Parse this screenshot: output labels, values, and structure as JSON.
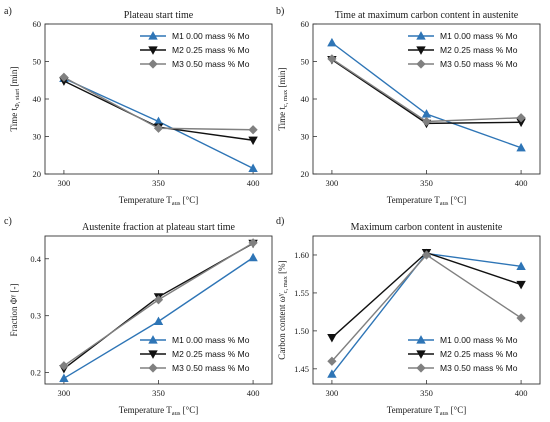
{
  "chart_data": [
    {
      "type": "line",
      "panel": "a)",
      "title": "Plateau start time",
      "xlabel": "Temperature",
      "xlabel_sub": "aus",
      "xlabel_unit": "[°C]",
      "ylabel": "Time t",
      "ylabel_sub": "Φ, start",
      "ylabel_unit": "[min]",
      "x": [
        300,
        350,
        400
      ],
      "xlim": [
        290,
        410
      ],
      "xticks": [
        "300",
        "350",
        "400"
      ],
      "ylim": [
        20,
        60
      ],
      "yticks": [
        "20",
        "30",
        "40",
        "50",
        "60"
      ],
      "legend": "top-right",
      "series": [
        {
          "name": "M1 0.00 mass % Mo",
          "values": [
            45.5,
            34.0,
            21.5
          ],
          "color": "#2e75b6",
          "marker": "triangle-up"
        },
        {
          "name": "M2 0.25 mass % Mo",
          "values": [
            44.8,
            32.5,
            29.0
          ],
          "color": "#111111",
          "marker": "triangle-down"
        },
        {
          "name": "M3 0.50 mass % Mo",
          "values": [
            45.8,
            32.2,
            31.8
          ],
          "color": "#808080",
          "marker": "diamond"
        }
      ]
    },
    {
      "type": "line",
      "panel": "b)",
      "title": "Time at maximum carbon content in austenite",
      "xlabel": "Temperature",
      "xlabel_sub": "aus",
      "xlabel_unit": "[°C]",
      "ylabel": "Time t",
      "ylabel_sub": "c, max",
      "ylabel_unit": "[min]",
      "x": [
        300,
        350,
        400
      ],
      "xlim": [
        290,
        410
      ],
      "xticks": [
        "300",
        "350",
        "400"
      ],
      "ylim": [
        20,
        60
      ],
      "yticks": [
        "20",
        "30",
        "40",
        "50",
        "60"
      ],
      "legend": "top-right",
      "series": [
        {
          "name": "M1 0.00 mass % Mo",
          "values": [
            55.0,
            36.0,
            27.0
          ],
          "color": "#2e75b6",
          "marker": "triangle-up"
        },
        {
          "name": "M2 0.25 mass % Mo",
          "values": [
            50.5,
            33.5,
            33.8
          ],
          "color": "#111111",
          "marker": "triangle-down"
        },
        {
          "name": "M3 0.50 mass % Mo",
          "values": [
            50.7,
            34.0,
            35.0
          ],
          "color": "#808080",
          "marker": "diamond"
        }
      ]
    },
    {
      "type": "line",
      "panel": "c)",
      "title": "Austenite fraction at plateau start time",
      "xlabel": "Temperature",
      "xlabel_sub": "aus",
      "xlabel_unit": "[°C]",
      "ylabel": "Fraction Φ",
      "ylabel_sup": "γ",
      "ylabel_unit": "[-]",
      "x": [
        300,
        350,
        400
      ],
      "xlim": [
        290,
        410
      ],
      "xticks": [
        "300",
        "350",
        "400"
      ],
      "ylim": [
        0.18,
        0.44
      ],
      "yticks": [
        "0.2",
        "0.3",
        "0.4"
      ],
      "ytick_values": [
        0.2,
        0.3,
        0.4
      ],
      "legend": "bottom-right",
      "series": [
        {
          "name": "M1 0.00 mass % Mo",
          "values": [
            0.19,
            0.29,
            0.402
          ],
          "color": "#2e75b6",
          "marker": "triangle-up"
        },
        {
          "name": "M2 0.25 mass % Mo",
          "values": [
            0.207,
            0.333,
            0.427
          ],
          "color": "#111111",
          "marker": "triangle-down"
        },
        {
          "name": "M3 0.50 mass % Mo",
          "values": [
            0.212,
            0.328,
            0.428
          ],
          "color": "#808080",
          "marker": "diamond"
        }
      ]
    },
    {
      "type": "line",
      "panel": "d)",
      "title": "Maximum carbon content in austenite",
      "xlabel": "Temperature",
      "xlabel_sub": "aus",
      "xlabel_unit": "[°C]",
      "ylabel": "Carbon content ω",
      "ylabel_sup": "γ",
      "ylabel_sub": "c, max",
      "ylabel_unit": "[%]",
      "x": [
        300,
        350,
        400
      ],
      "xlim": [
        290,
        410
      ],
      "xticks": [
        "300",
        "350",
        "400"
      ],
      "ylim": [
        1.43,
        1.625
      ],
      "yticks": [
        "1.45",
        "1.50",
        "1.55",
        "1.60"
      ],
      "ytick_values": [
        1.45,
        1.5,
        1.55,
        1.6
      ],
      "legend": "bottom-right",
      "series": [
        {
          "name": "M1 0.00 mass % Mo",
          "values": [
            1.443,
            1.602,
            1.585
          ],
          "color": "#2e75b6",
          "marker": "triangle-up"
        },
        {
          "name": "M2 0.25 mass % Mo",
          "values": [
            1.491,
            1.603,
            1.561
          ],
          "color": "#111111",
          "marker": "triangle-down"
        },
        {
          "name": "M3 0.50 mass % Mo",
          "values": [
            1.46,
            1.6,
            1.517
          ],
          "color": "#808080",
          "marker": "diamond"
        }
      ]
    }
  ]
}
